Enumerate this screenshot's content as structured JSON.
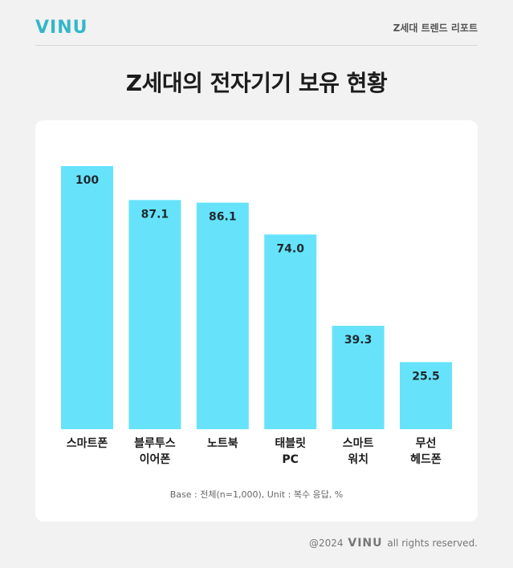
{
  "brand": {
    "logo": "VINU",
    "logo_color": "#33b7c9",
    "footer_logo_color": "#777777"
  },
  "header": {
    "report_label": "Z세대 트렌드 리포트"
  },
  "page_title": "Z세대의 전자기기 보유 현황",
  "footer": {
    "copyright_prefix": "@2024",
    "rights": "all rights reserved."
  },
  "chart_data": {
    "type": "bar",
    "title": "Z세대의 전자기기 보유 현황",
    "categories": [
      [
        "스마트폰"
      ],
      [
        "블루투스",
        "이어폰"
      ],
      [
        "노트북"
      ],
      [
        "태블릿",
        "PC"
      ],
      [
        "스마트",
        "워치"
      ],
      [
        "무선",
        "헤드폰"
      ]
    ],
    "values": [
      100,
      87.1,
      86.1,
      74.0,
      39.3,
      25.5
    ],
    "value_labels": [
      "100",
      "87.1",
      "86.1",
      "74.0",
      "39.3",
      "25.5"
    ],
    "ylim": [
      0,
      100
    ],
    "grid": false,
    "bar_color": "#66e3fb",
    "note": "Base : 전체(n=1,000), Unit : 복수 응답, %"
  }
}
